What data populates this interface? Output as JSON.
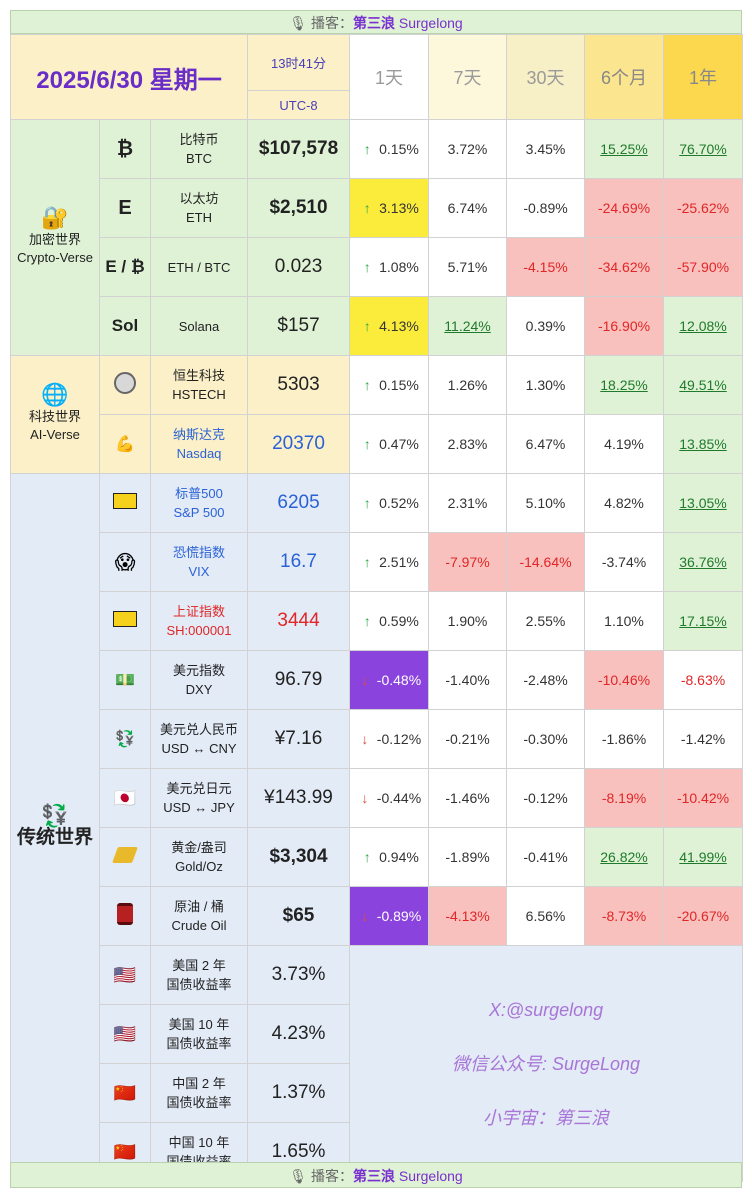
{
  "banner": {
    "label": "播客：",
    "host_cn": "第三浪",
    "host_en": "Surgelong",
    "icon": "microphone-icon"
  },
  "header": {
    "date": "2025/6/30 星期一",
    "time": "13时41分",
    "tz": "UTC-8",
    "periods": [
      "1天",
      "7天",
      "30天",
      "6个月",
      "1年"
    ]
  },
  "groups": {
    "crypto": {
      "cn": "加密世界",
      "en": "Crypto-Verse",
      "icon": "lock-key-icon"
    },
    "ai": {
      "cn": "科技世界",
      "en": "AI-Verse",
      "icon": "globe-icon"
    },
    "trad": {
      "cn": "传统世界",
      "icon": "currency-exchange-icon"
    }
  },
  "rows": [
    {
      "sym": "₿",
      "cn": "比特币",
      "en": "BTC",
      "price": "$107,578",
      "d1": "0.15%",
      "d7": "3.72%",
      "d30": "3.45%",
      "m6": "15.25%",
      "y1": "76.70%"
    },
    {
      "sym": "E",
      "cn": "以太坊",
      "en": "ETH",
      "price": "$2,510",
      "d1": "3.13%",
      "d7": "6.74%",
      "d30": "-0.89%",
      "m6": "-24.69%",
      "y1": "-25.62%"
    },
    {
      "sym": "E / ₿",
      "cn": "ETH / BTC",
      "price": "0.023",
      "d1": "1.08%",
      "d7": "5.71%",
      "d30": "-4.15%",
      "m6": "-34.62%",
      "y1": "-57.90%"
    },
    {
      "sym": "Sol",
      "cn": "Solana",
      "price": "$157",
      "d1": "4.13%",
      "d7": "11.24%",
      "d30": "0.39%",
      "m6": "-16.90%",
      "y1": "12.08%"
    },
    {
      "cn": "恒生科技",
      "en": "HSTECH",
      "price": "5303",
      "d1": "0.15%",
      "d7": "1.26%",
      "d30": "1.30%",
      "m6": "18.25%",
      "y1": "49.51%"
    },
    {
      "cn": "纳斯达克",
      "en": "Nasdaq",
      "price": "20370",
      "d1": "0.47%",
      "d7": "2.83%",
      "d30": "6.47%",
      "m6": "4.19%",
      "y1": "13.85%"
    },
    {
      "cn": "标普500",
      "en": "S&P 500",
      "price": "6205",
      "d1": "0.52%",
      "d7": "2.31%",
      "d30": "5.10%",
      "m6": "4.82%",
      "y1": "13.05%"
    },
    {
      "cn": "恐慌指数",
      "en": "VIX",
      "price": "16.7",
      "d1": "2.51%",
      "d7": "-7.97%",
      "d30": "-14.64%",
      "m6": "-3.74%",
      "y1": "36.76%"
    },
    {
      "cn": "上证指数",
      "en": "SH:000001",
      "price": "3444",
      "d1": "0.59%",
      "d7": "1.90%",
      "d30": "2.55%",
      "m6": "1.10%",
      "y1": "17.15%"
    },
    {
      "cn": "美元指数",
      "en": "DXY",
      "price": "96.79",
      "d1": "-0.48%",
      "d7": "-1.40%",
      "d30": "-2.48%",
      "m6": "-10.46%",
      "y1": "-8.63%"
    },
    {
      "cn": "美元兑人民币",
      "en": "USD ↔ CNY",
      "price": "¥7.16",
      "d1": "-0.12%",
      "d7": "-0.21%",
      "d30": "-0.30%",
      "m6": "-1.86%",
      "y1": "-1.42%"
    },
    {
      "cn": "美元兑日元",
      "en": "USD ↔ JPY",
      "price": "¥143.99",
      "d1": "-0.44%",
      "d7": "-1.46%",
      "d30": "-0.12%",
      "m6": "-8.19%",
      "y1": "-10.42%"
    },
    {
      "cn": "黄金/盎司",
      "en": "Gold/Oz",
      "price": "$3,304",
      "d1": "0.94%",
      "d7": "-1.89%",
      "d30": "-0.41%",
      "m6": "26.82%",
      "y1": "41.99%"
    },
    {
      "cn": "原油 / 桶",
      "en": "Crude Oil",
      "price": "$65",
      "d1": "-0.89%",
      "d7": "-4.13%",
      "d30": "6.56%",
      "m6": "-8.73%",
      "y1": "-20.67%"
    },
    {
      "cn": "美国 2 年",
      "en": "国债收益率",
      "price": "3.73%"
    },
    {
      "cn": "美国 10 年",
      "en": "国债收益率",
      "price": "4.23%"
    },
    {
      "cn": "中国 2 年",
      "en": "国债收益率",
      "price": "1.37%"
    },
    {
      "cn": "中国 10 年",
      "en": "国债收益率",
      "price": "1.65%"
    }
  ],
  "promo": [
    "X:@surgelong",
    "微信公众号: SurgeLong",
    "小宇宙：第三浪"
  ],
  "colors": {
    "purple_text": "#6a2dc8",
    "green_bg": "#dff2d6",
    "pink_bg": "#f9c1be",
    "yellow_hl": "#fbec3b",
    "purple_hl": "#8a43dc",
    "red_text": "#e02626",
    "blue_text": "#2a62d6"
  }
}
